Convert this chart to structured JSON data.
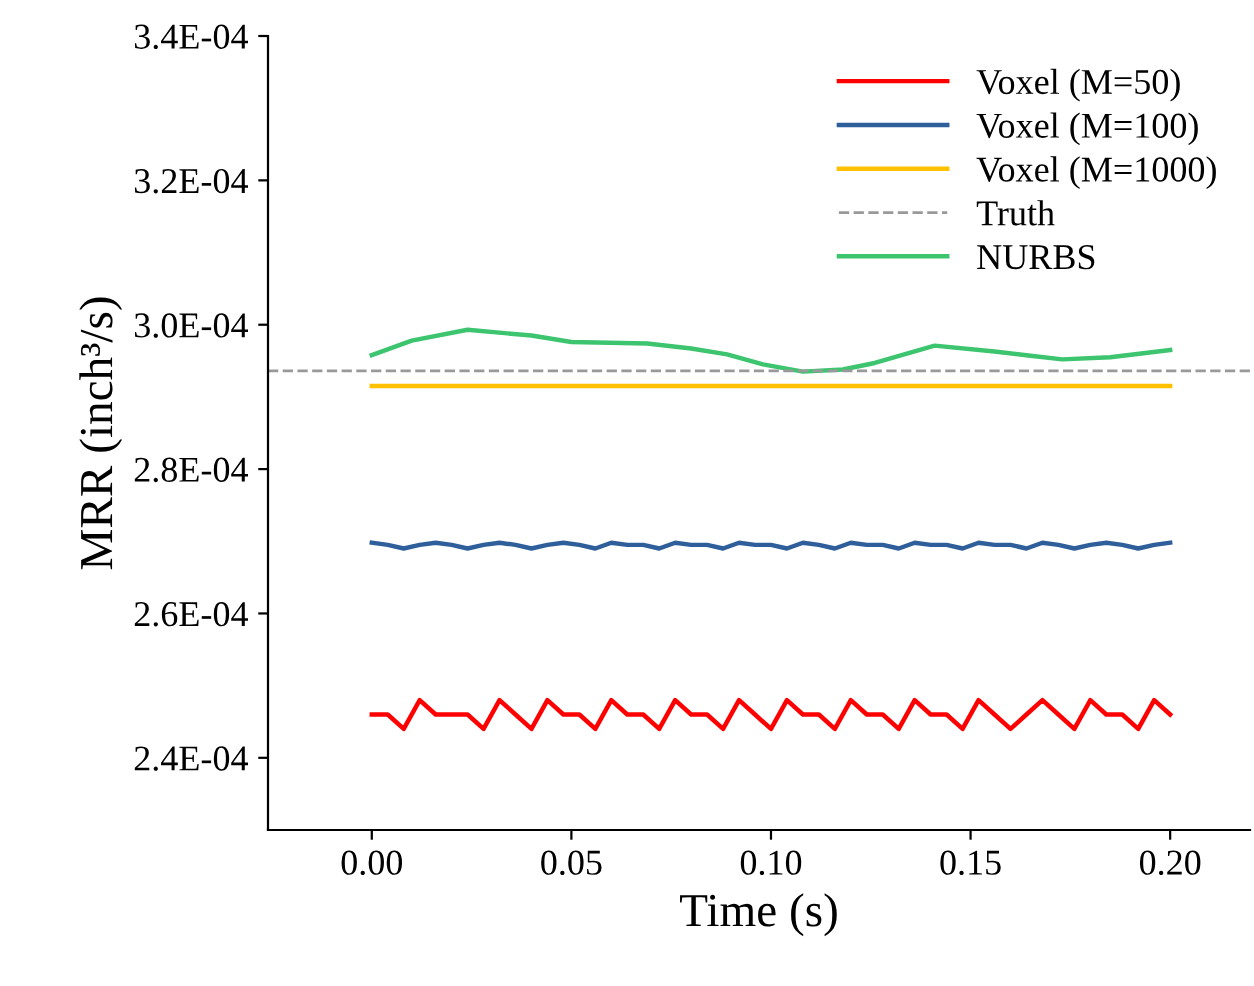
{
  "chart_data": {
    "type": "line",
    "xlabel": "Time (s)",
    "ylabel": "MRR (inch³/s)",
    "x": [
      0,
      0.004,
      0.008,
      0.012,
      0.016,
      0.02,
      0.024,
      0.028,
      0.032,
      0.036,
      0.04,
      0.044,
      0.048,
      0.052,
      0.056,
      0.06,
      0.064,
      0.068,
      0.072,
      0.076,
      0.08,
      0.084,
      0.088,
      0.092,
      0.096,
      0.1,
      0.104,
      0.108,
      0.112,
      0.116,
      0.12,
      0.124,
      0.128,
      0.132,
      0.136,
      0.14,
      0.144,
      0.148,
      0.152,
      0.156,
      0.16,
      0.164,
      0.168,
      0.172,
      0.176,
      0.18,
      0.184,
      0.188,
      0.192,
      0.196,
      0.2
    ],
    "series": [
      {
        "name": "Voxel (M=50)",
        "color": "#ff0000",
        "values": [
          0.000246,
          0.000246,
          0.000244,
          0.000248,
          0.000246,
          0.000246,
          0.000246,
          0.000244,
          0.000248,
          0.000246,
          0.000244,
          0.000248,
          0.000246,
          0.000246,
          0.000244,
          0.000248,
          0.000246,
          0.000246,
          0.000244,
          0.000248,
          0.000246,
          0.000246,
          0.000244,
          0.000248,
          0.000246,
          0.000244,
          0.000248,
          0.000246,
          0.000246,
          0.000244,
          0.000248,
          0.000246,
          0.000246,
          0.000244,
          0.000248,
          0.000246,
          0.000246,
          0.000244,
          0.000248,
          0.000246,
          0.000244,
          0.000246,
          0.000248,
          0.000246,
          0.000244,
          0.000248,
          0.000246,
          0.000246,
          0.000244,
          0.000248,
          0.000246
        ]
      },
      {
        "name": "Voxel (M=100)",
        "color": "#2e5f9a",
        "values": [
          0.0002698,
          0.0002695,
          0.000269,
          0.0002695,
          0.0002698,
          0.0002695,
          0.000269,
          0.0002695,
          0.0002698,
          0.0002695,
          0.000269,
          0.0002695,
          0.0002698,
          0.0002695,
          0.000269,
          0.0002698,
          0.0002695,
          0.0002695,
          0.000269,
          0.0002698,
          0.0002695,
          0.0002695,
          0.000269,
          0.0002698,
          0.0002695,
          0.0002695,
          0.000269,
          0.0002698,
          0.0002695,
          0.000269,
          0.0002698,
          0.0002695,
          0.0002695,
          0.000269,
          0.0002698,
          0.0002695,
          0.0002695,
          0.000269,
          0.0002698,
          0.0002695,
          0.0002695,
          0.000269,
          0.0002698,
          0.0002695,
          0.000269,
          0.0002695,
          0.0002698,
          0.0002695,
          0.000269,
          0.0002695,
          0.0002698
        ]
      },
      {
        "name": "Voxel (M=1000)",
        "color": "#ffc000",
        "x": [
          0,
          0.2
        ],
        "values": [
          0.0002915,
          0.0002915
        ]
      },
      {
        "name": "NURBS",
        "color": "#3cc46e",
        "x": [
          0,
          0.01,
          0.024,
          0.04,
          0.05,
          0.069,
          0.08,
          0.089,
          0.098,
          0.108,
          0.118,
          0.126,
          0.141,
          0.156,
          0.165,
          0.173,
          0.185,
          0.2
        ],
        "values": [
          0.0002958,
          0.0002978,
          0.0002993,
          0.0002985,
          0.0002976,
          0.0002974,
          0.0002967,
          0.0002959,
          0.0002945,
          0.0002935,
          0.0002938,
          0.0002947,
          0.0002971,
          0.0002963,
          0.0002957,
          0.0002952,
          0.0002955,
          0.0002965
        ]
      }
    ],
    "ref_lines": [
      {
        "axis": "y",
        "value": 0.0002936,
        "label": "Truth",
        "color": "#999999",
        "line_style": "dashed"
      }
    ],
    "xlim": [
      -0.026,
      0.22
    ],
    "xticks": [
      {
        "value": 0,
        "label": "0.00"
      },
      {
        "value": 0.05,
        "label": "0.05"
      },
      {
        "value": 0.1,
        "label": "0.10"
      },
      {
        "value": 0.15,
        "label": "0.15"
      },
      {
        "value": 0.2,
        "label": "0.20"
      }
    ],
    "ylim": [
      0.00023,
      0.00034
    ],
    "yticks": [
      {
        "value": 0.00024,
        "label": "2.4E-04"
      },
      {
        "value": 0.00026,
        "label": "2.6E-04"
      },
      {
        "value": 0.00028,
        "label": "2.8E-04"
      },
      {
        "value": 0.0003,
        "label": "3.0E-04"
      },
      {
        "value": 0.00032,
        "label": "3.2E-04"
      },
      {
        "value": 0.00034,
        "label": "3.4E-04"
      }
    ],
    "legend": "top right",
    "grid": false,
    "marker": "none",
    "line_style": "solid"
  }
}
